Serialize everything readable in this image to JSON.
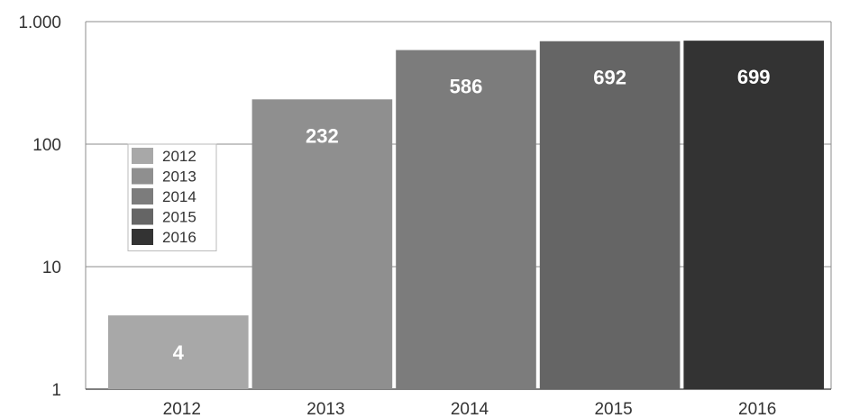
{
  "chart_data": {
    "type": "bar",
    "title": "",
    "xlabel": "",
    "ylabel": "",
    "y_scale": "log",
    "ylim": [
      1,
      1000
    ],
    "y_ticks": [
      1,
      10,
      100,
      1000
    ],
    "y_tick_labels": [
      "1",
      "10",
      "100",
      "1.000"
    ],
    "categories": [
      "2012",
      "2013",
      "2014",
      "2015",
      "2016"
    ],
    "values": [
      4,
      232,
      586,
      692,
      699
    ],
    "value_labels": [
      "4",
      "232",
      "586",
      "692",
      "699"
    ],
    "colors": [
      "#a8a8a8",
      "#8f8f8f",
      "#7c7c7c",
      "#656565",
      "#333333"
    ],
    "grid": true,
    "legend": {
      "placement": "inside-left",
      "entries": [
        "2012",
        "2013",
        "2014",
        "2015",
        "2016"
      ]
    }
  }
}
